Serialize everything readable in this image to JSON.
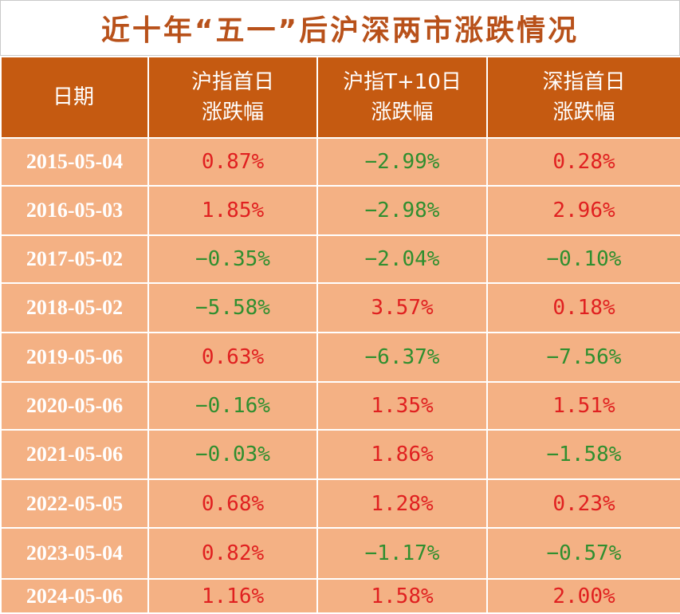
{
  "title": "近十年“五一”后沪深两市涨跌情况",
  "colors": {
    "title": "#b8511a",
    "header_bg": "#c55a11",
    "cell_bg": "#f4b184",
    "up": "#e02020",
    "down": "#2f8f2f"
  },
  "chart_data": {
    "type": "table",
    "columns": [
      [
        "日期"
      ],
      [
        "沪指首日",
        "涨跌幅"
      ],
      [
        "沪指T+10日",
        "涨跌幅"
      ],
      [
        "深指首日",
        "涨跌幅"
      ]
    ],
    "rows": [
      [
        "2015-05-04",
        "0.87%",
        "−2.99%",
        "0.28%"
      ],
      [
        "2016-05-03",
        "1.85%",
        "−2.98%",
        "2.96%"
      ],
      [
        "2017-05-02",
        "−0.35%",
        "−2.04%",
        "−0.10%"
      ],
      [
        "2018-05-02",
        "−5.58%",
        "3.57%",
        "0.18%"
      ],
      [
        "2019-05-06",
        "0.63%",
        "−6.37%",
        "−7.56%"
      ],
      [
        "2020-05-06",
        "−0.16%",
        "1.35%",
        "1.51%"
      ],
      [
        "2021-05-06",
        "−0.03%",
        "1.86%",
        "−1.58%"
      ],
      [
        "2022-05-05",
        "0.68%",
        "1.28%",
        "0.23%"
      ],
      [
        "2023-05-04",
        "0.82%",
        "−1.17%",
        "−0.57%"
      ],
      [
        "2024-05-06",
        "1.16%",
        "1.58%",
        "2.00%"
      ]
    ]
  }
}
